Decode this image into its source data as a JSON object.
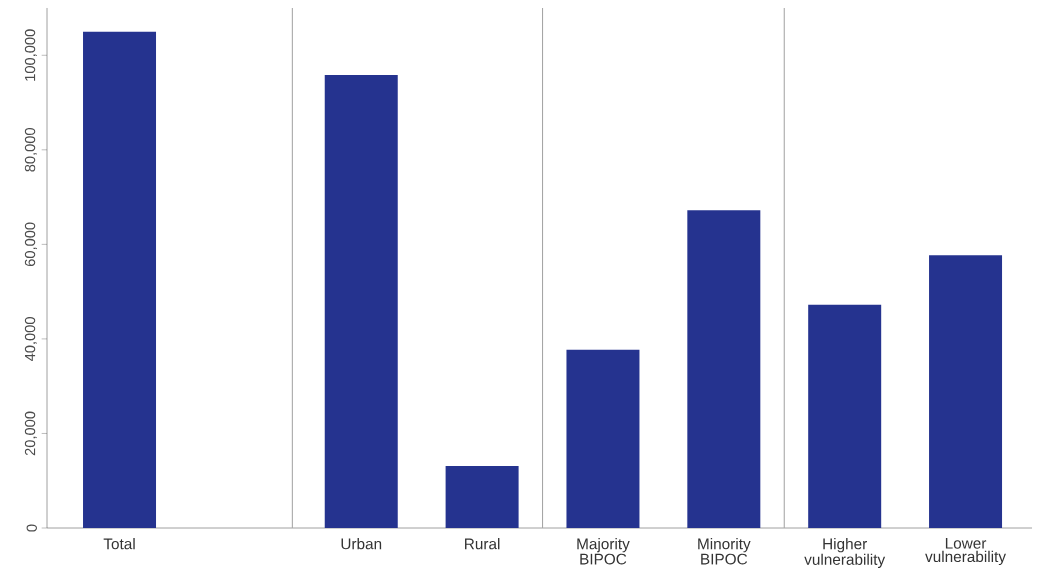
{
  "chart_data": {
    "type": "bar",
    "categories": [
      "Total",
      null,
      "Urban",
      "Rural",
      "Majority BIPOC",
      "Minority BIPOC",
      "Higher vulnerability",
      "Lower vulnerability"
    ],
    "values": [
      105000,
      null,
      95800,
      13100,
      37700,
      67200,
      47200,
      57700
    ],
    "color": "#25338f",
    "ylim": [
      0,
      110000
    ],
    "yticks": [
      {
        "value": 0,
        "label": "0"
      },
      {
        "value": 20000,
        "label": "20,000"
      },
      {
        "value": 40000,
        "label": "40,000"
      },
      {
        "value": 60000,
        "label": "60,000"
      },
      {
        "value": 80000,
        "label": "80,000"
      },
      {
        "value": 100000,
        "label": "100,000"
      }
    ],
    "grid": false
  }
}
